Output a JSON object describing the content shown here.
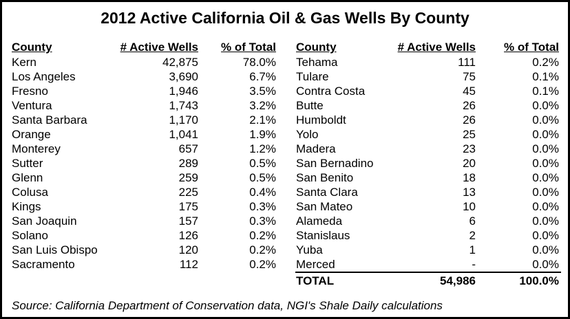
{
  "title": "2012 Active California Oil & Gas Wells By County",
  "left_table": {
    "header": [
      "County",
      "# Active Wells",
      "% of Total"
    ],
    "rows": [
      [
        "Kern",
        "42,875",
        "78.0%"
      ],
      [
        "Los Angeles",
        "3,690",
        "6.7%"
      ],
      [
        "Fresno",
        "1,946",
        "3.5%"
      ],
      [
        "Ventura",
        "1,743",
        "3.2%"
      ],
      [
        "Santa Barbara",
        "1,170",
        "2.1%"
      ],
      [
        "Orange",
        "1,041",
        "1.9%"
      ],
      [
        "Monterey",
        "657",
        "1.2%"
      ],
      [
        "Sutter",
        "289",
        "0.5%"
      ],
      [
        "Glenn",
        "259",
        "0.5%"
      ],
      [
        "Colusa",
        "225",
        "0.4%"
      ],
      [
        "Kings",
        "175",
        "0.3%"
      ],
      [
        "San Joaquin",
        "157",
        "0.3%"
      ],
      [
        "Solano",
        "126",
        "0.2%"
      ],
      [
        "San Luis Obispo",
        "120",
        "0.2%"
      ],
      [
        "Sacramento",
        "112",
        "0.2%"
      ]
    ]
  },
  "right_table": {
    "header": [
      "County",
      "# Active Wells",
      "% of Total"
    ],
    "rows": [
      [
        "Tehama",
        "111",
        "0.2%"
      ],
      [
        "Tulare",
        "75",
        "0.1%"
      ],
      [
        "Contra Costa",
        "45",
        "0.1%"
      ],
      [
        "Butte",
        "26",
        "0.0%"
      ],
      [
        "Humboldt",
        "26",
        "0.0%"
      ],
      [
        "Yolo",
        "25",
        "0.0%"
      ],
      [
        "Madera",
        "23",
        "0.0%"
      ],
      [
        "San Bernadino",
        "20",
        "0.0%"
      ],
      [
        "San Benito",
        "18",
        "0.0%"
      ],
      [
        "Santa Clara",
        "13",
        "0.0%"
      ],
      [
        "San Mateo",
        "10",
        "0.0%"
      ],
      [
        "Alameda",
        "6",
        "0.0%"
      ],
      [
        "Stanislaus",
        "2",
        "0.0%"
      ],
      [
        "Yuba",
        "1",
        "0.0%"
      ],
      [
        "Merced",
        "-",
        "0.0%"
      ]
    ],
    "total": [
      "TOTAL",
      "54,986",
      "100.0%"
    ]
  },
  "source": "Source: California Department of Conservation data, NGI's Shale Daily calculations"
}
